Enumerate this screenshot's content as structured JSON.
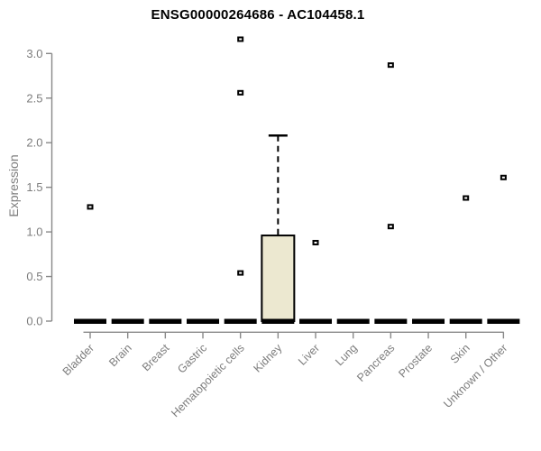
{
  "chart_data": {
    "type": "box",
    "title": "ENSG00000264686 - AC104458.1",
    "ylabel": "Expression",
    "xlabel": "",
    "ylim": [
      0.0,
      3.0
    ],
    "yticks": [
      0.0,
      0.5,
      1.0,
      1.5,
      2.0,
      2.5,
      3.0
    ],
    "grid": false,
    "legend": false,
    "categories": [
      "Bladder",
      "Brain",
      "Breast",
      "Gastric",
      "Hematopoietic cells",
      "Kidney",
      "Liver",
      "Lung",
      "Pancreas",
      "Prostate",
      "Skin",
      "Unknown / Other"
    ],
    "boxes": [
      {
        "category": "Bladder",
        "median": 0,
        "q1": 0,
        "q3": 0,
        "whisker_low": 0,
        "whisker_high": 0,
        "outliers": [
          1.28
        ]
      },
      {
        "category": "Brain",
        "median": 0,
        "q1": 0,
        "q3": 0,
        "whisker_low": 0,
        "whisker_high": 0,
        "outliers": []
      },
      {
        "category": "Breast",
        "median": 0,
        "q1": 0,
        "q3": 0,
        "whisker_low": 0,
        "whisker_high": 0,
        "outliers": []
      },
      {
        "category": "Gastric",
        "median": 0,
        "q1": 0,
        "q3": 0,
        "whisker_low": 0,
        "whisker_high": 0,
        "outliers": []
      },
      {
        "category": "Hematopoietic cells",
        "median": 0,
        "q1": 0,
        "q3": 0,
        "whisker_low": 0,
        "whisker_high": 0,
        "outliers": [
          3.16,
          2.56,
          0.54
        ]
      },
      {
        "category": "Kidney",
        "median": 0,
        "q1": 0,
        "q3": 0.96,
        "whisker_low": 0,
        "whisker_high": 2.08,
        "outliers": []
      },
      {
        "category": "Liver",
        "median": 0,
        "q1": 0,
        "q3": 0,
        "whisker_low": 0,
        "whisker_high": 0,
        "outliers": [
          0.88
        ]
      },
      {
        "category": "Lung",
        "median": 0,
        "q1": 0,
        "q3": 0,
        "whisker_low": 0,
        "whisker_high": 0,
        "outliers": []
      },
      {
        "category": "Pancreas",
        "median": 0,
        "q1": 0,
        "q3": 0,
        "whisker_low": 0,
        "whisker_high": 0,
        "outliers": [
          2.87,
          1.06
        ]
      },
      {
        "category": "Prostate",
        "median": 0,
        "q1": 0,
        "q3": 0,
        "whisker_low": 0,
        "whisker_high": 0,
        "outliers": []
      },
      {
        "category": "Skin",
        "median": 0,
        "q1": 0,
        "q3": 0,
        "whisker_low": 0,
        "whisker_high": 0,
        "outliers": [
          1.38
        ]
      },
      {
        "category": "Unknown / Other",
        "median": 0,
        "q1": 0,
        "q3": 0,
        "whisker_low": 0,
        "whisker_high": 0,
        "outliers": [
          1.61
        ]
      }
    ],
    "colors": {
      "box_fill": "#ece8d0",
      "box_border": "#000000",
      "median_bar": "#000000",
      "whisker": "#000000",
      "outlier_border": "#000000",
      "outlier_fill": "#ffffff",
      "axis_line": "#888888",
      "tick_label": "#7d7d7d",
      "title": "#000000",
      "background": "#ffffff"
    }
  }
}
